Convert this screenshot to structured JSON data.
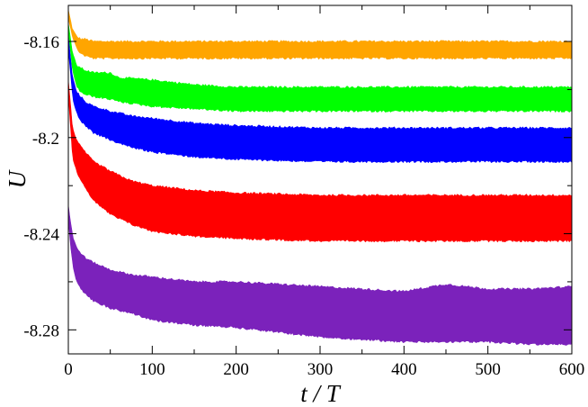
{
  "chart_data": {
    "type": "area",
    "title": "",
    "xlabel": "t / T",
    "ylabel": "U",
    "xlim": [
      0,
      600
    ],
    "ylim": [
      -8.29,
      -8.145
    ],
    "xticks": [
      0,
      100,
      200,
      300,
      400,
      500,
      600
    ],
    "xtick_labels": [
      "0",
      "100",
      "200",
      "300",
      "400",
      "500",
      "600"
    ],
    "yticks": [
      -8.28,
      -8.24,
      -8.2,
      -8.16
    ],
    "ytick_labels": [
      "-8.28",
      "-8.24",
      "-8.2",
      "-8.16"
    ],
    "grid": false,
    "legend": "none",
    "series": [
      {
        "color": "#ffa500",
        "x": [
          0,
          5,
          10,
          15,
          20,
          30,
          50,
          100,
          200,
          300,
          400,
          500,
          600
        ],
        "upper": [
          -8.147,
          -8.155,
          -8.158,
          -8.159,
          -8.159,
          -8.16,
          -8.16,
          -8.16,
          -8.16,
          -8.16,
          -8.16,
          -8.16,
          -8.16
        ],
        "lower": [
          -8.15,
          -8.158,
          -8.163,
          -8.165,
          -8.166,
          -8.167,
          -8.167,
          -8.167,
          -8.167,
          -8.167,
          -8.167,
          -8.167,
          -8.167
        ]
      },
      {
        "color": "#00ff00",
        "x": [
          0,
          5,
          10,
          15,
          20,
          30,
          50,
          60,
          100,
          150,
          200,
          300,
          400,
          500,
          600
        ],
        "upper": [
          -8.152,
          -8.165,
          -8.17,
          -8.171,
          -8.172,
          -8.173,
          -8.173,
          -8.175,
          -8.176,
          -8.178,
          -8.179,
          -8.179,
          -8.179,
          -8.179,
          -8.179
        ],
        "lower": [
          -8.156,
          -8.172,
          -8.179,
          -8.181,
          -8.182,
          -8.183,
          -8.184,
          -8.185,
          -8.187,
          -8.188,
          -8.189,
          -8.189,
          -8.189,
          -8.189,
          -8.189
        ]
      },
      {
        "color": "#0000ff",
        "x": [
          0,
          5,
          10,
          15,
          20,
          30,
          50,
          75,
          100,
          150,
          200,
          300,
          400,
          500,
          600
        ],
        "upper": [
          -8.158,
          -8.175,
          -8.181,
          -8.183,
          -8.185,
          -8.187,
          -8.189,
          -8.191,
          -8.192,
          -8.194,
          -8.195,
          -8.196,
          -8.196,
          -8.196,
          -8.196
        ],
        "lower": [
          -8.163,
          -8.183,
          -8.19,
          -8.193,
          -8.195,
          -8.198,
          -8.201,
          -8.204,
          -8.206,
          -8.208,
          -8.209,
          -8.21,
          -8.21,
          -8.21,
          -8.21
        ]
      },
      {
        "color": "#ff0000",
        "x": [
          0,
          5,
          10,
          15,
          20,
          30,
          50,
          75,
          100,
          150,
          200,
          300,
          400,
          500,
          600
        ],
        "upper": [
          -8.176,
          -8.196,
          -8.201,
          -8.204,
          -8.206,
          -8.21,
          -8.214,
          -8.218,
          -8.22,
          -8.222,
          -8.223,
          -8.224,
          -8.224,
          -8.224,
          -8.224
        ],
        "lower": [
          -8.182,
          -8.208,
          -8.214,
          -8.218,
          -8.221,
          -8.226,
          -8.232,
          -8.236,
          -8.239,
          -8.241,
          -8.242,
          -8.243,
          -8.243,
          -8.243,
          -8.243
        ]
      },
      {
        "color": "#7b22bb",
        "x": [
          0,
          3,
          6,
          10,
          15,
          20,
          30,
          50,
          75,
          100,
          150,
          200,
          250,
          300,
          350,
          400,
          450,
          500,
          550,
          600
        ],
        "upper": [
          -8.228,
          -8.236,
          -8.242,
          -8.246,
          -8.248,
          -8.25,
          -8.252,
          -8.255,
          -8.257,
          -8.258,
          -8.26,
          -8.26,
          -8.261,
          -8.262,
          -8.263,
          -8.264,
          -8.261,
          -8.263,
          -8.263,
          -8.262
        ],
        "lower": [
          -8.234,
          -8.246,
          -8.254,
          -8.26,
          -8.263,
          -8.265,
          -8.268,
          -8.271,
          -8.273,
          -8.276,
          -8.278,
          -8.279,
          -8.281,
          -8.283,
          -8.284,
          -8.285,
          -8.285,
          -8.285,
          -8.286,
          -8.286
        ]
      }
    ]
  }
}
